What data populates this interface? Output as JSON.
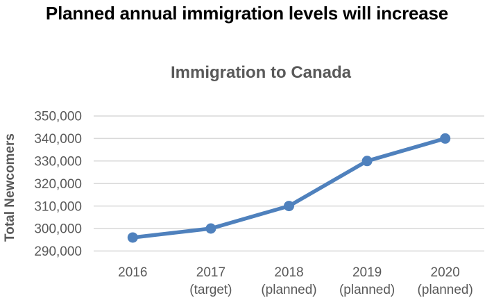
{
  "page": {
    "heading": "Planned annual immigration levels will increase"
  },
  "chart_data": {
    "type": "line",
    "title": "Immigration to Canada",
    "xlabel": "",
    "ylabel": "Total Newcomers",
    "categories": [
      {
        "line1": "2016",
        "line2": ""
      },
      {
        "line1": "2017",
        "line2": "(target)"
      },
      {
        "line1": "2018",
        "line2": "(planned)"
      },
      {
        "line1": "2019",
        "line2": "(planned)"
      },
      {
        "line1": "2020",
        "line2": "(planned)"
      }
    ],
    "series": [
      {
        "name": "Immigration to Canada",
        "values": [
          296000,
          300000,
          310000,
          330000,
          340000
        ]
      }
    ],
    "ylim": [
      290000,
      350000
    ],
    "ytick_step": 10000,
    "ytick_labels": [
      "290,000",
      "300,000",
      "310,000",
      "320,000",
      "330,000",
      "340,000",
      "350,000"
    ],
    "grid": true,
    "legend": false,
    "colors": {
      "series": "#4f81bd",
      "gridline": "#d9d9d9",
      "axis_text": "#595959",
      "title_text": "#595959",
      "heading_text": "#000000"
    }
  }
}
